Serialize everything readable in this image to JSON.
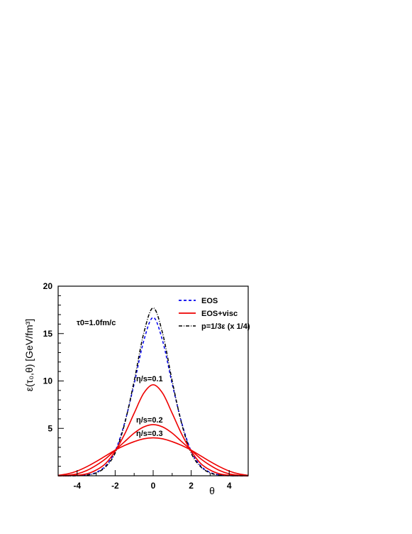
{
  "chart_data": {
    "type": "line",
    "xlabel": "θ",
    "ylabel": "ε(τ₀,θ)    [GeV/fm³]",
    "xlim": [
      -5,
      5
    ],
    "ylim": [
      0,
      20
    ],
    "x_ticks": [
      "-4",
      "-2",
      "0",
      "2",
      "4"
    ],
    "y_ticks": [
      "5",
      "10",
      "15",
      "20"
    ],
    "legend_position": "top-right",
    "legend": [
      {
        "label": "EOS",
        "color": "#0000ee",
        "style": "dashed"
      },
      {
        "label": "EOS+visc",
        "color": "#ee0000",
        "style": "solid"
      },
      {
        "label": "p=1/3ε (x 1/4)",
        "color": "#000000",
        "style": "dash-dot"
      }
    ],
    "annotations": {
      "tau0": "τ0=1.0fm/c",
      "eta_01": "η/s=0.1",
      "eta_02": "η/s=0.2",
      "eta_03": "η/s=0.3"
    },
    "series": [
      {
        "name": "EOS",
        "color": "#0000ee",
        "style": "dashed",
        "x": [
          -5,
          -4.5,
          -4,
          -3.5,
          -3,
          -2.5,
          -2,
          -1.5,
          -1,
          -0.5,
          0,
          0.5,
          1,
          1.5,
          2,
          2.5,
          3,
          3.5,
          4,
          4.5,
          5
        ],
        "y": [
          0,
          0,
          0.01,
          0.08,
          0.35,
          1.05,
          2.6,
          5.6,
          9.7,
          14.2,
          16.7,
          14.2,
          9.7,
          5.6,
          2.6,
          1.05,
          0.35,
          0.08,
          0.01,
          0,
          0
        ]
      },
      {
        "name": "p=1/3ε (x 1/4)",
        "color": "#000000",
        "style": "dash-dot",
        "x": [
          -5,
          -4.5,
          -4,
          -3.5,
          -3,
          -2.5,
          -2,
          -1.5,
          -1,
          -0.5,
          0,
          0.5,
          1,
          1.5,
          2,
          2.5,
          3,
          3.5,
          4,
          4.5,
          5
        ],
        "y": [
          0,
          0,
          0.01,
          0.07,
          0.3,
          0.95,
          2.4,
          5.5,
          10.0,
          15.0,
          17.7,
          15.0,
          10.0,
          5.5,
          2.4,
          0.95,
          0.3,
          0.07,
          0.01,
          0,
          0
        ]
      },
      {
        "name": "EOS+visc η/s=0.1",
        "color": "#ee0000",
        "style": "solid",
        "x": [
          -5,
          -4.5,
          -4,
          -3.5,
          -3,
          -2.5,
          -2,
          -1.5,
          -1,
          -0.5,
          0,
          0.5,
          1,
          1.5,
          2,
          2.5,
          3,
          3.5,
          4,
          4.5,
          5
        ],
        "y": [
          0,
          0.01,
          0.05,
          0.2,
          0.6,
          1.3,
          2.6,
          4.4,
          6.6,
          8.7,
          9.6,
          8.7,
          6.6,
          4.4,
          2.6,
          1.3,
          0.6,
          0.2,
          0.05,
          0.01,
          0
        ]
      },
      {
        "name": "EOS+visc η/s=0.2",
        "color": "#ee0000",
        "style": "solid",
        "x": [
          -5,
          -4.5,
          -4,
          -3.5,
          -3,
          -2.5,
          -2,
          -1.5,
          -1,
          -0.5,
          0,
          0.5,
          1,
          1.5,
          2,
          2.5,
          3,
          3.5,
          4,
          4.5,
          5
        ],
        "y": [
          0,
          0.05,
          0.2,
          0.55,
          1.1,
          1.8,
          2.7,
          3.6,
          4.5,
          5.15,
          5.4,
          5.15,
          4.5,
          3.6,
          2.7,
          1.8,
          1.1,
          0.55,
          0.2,
          0.05,
          0
        ]
      },
      {
        "name": "EOS+visc η/s=0.3",
        "color": "#ee0000",
        "style": "solid",
        "x": [
          -5,
          -4.5,
          -4,
          -3.5,
          -3,
          -2.5,
          -2,
          -1.5,
          -1,
          -0.5,
          0,
          0.5,
          1,
          1.5,
          2,
          2.5,
          3,
          3.5,
          4,
          4.5,
          5
        ],
        "y": [
          0.05,
          0.2,
          0.5,
          0.95,
          1.5,
          2.1,
          2.7,
          3.2,
          3.6,
          3.9,
          4.0,
          3.9,
          3.6,
          3.2,
          2.7,
          2.1,
          1.5,
          0.95,
          0.5,
          0.2,
          0.05
        ]
      }
    ]
  }
}
